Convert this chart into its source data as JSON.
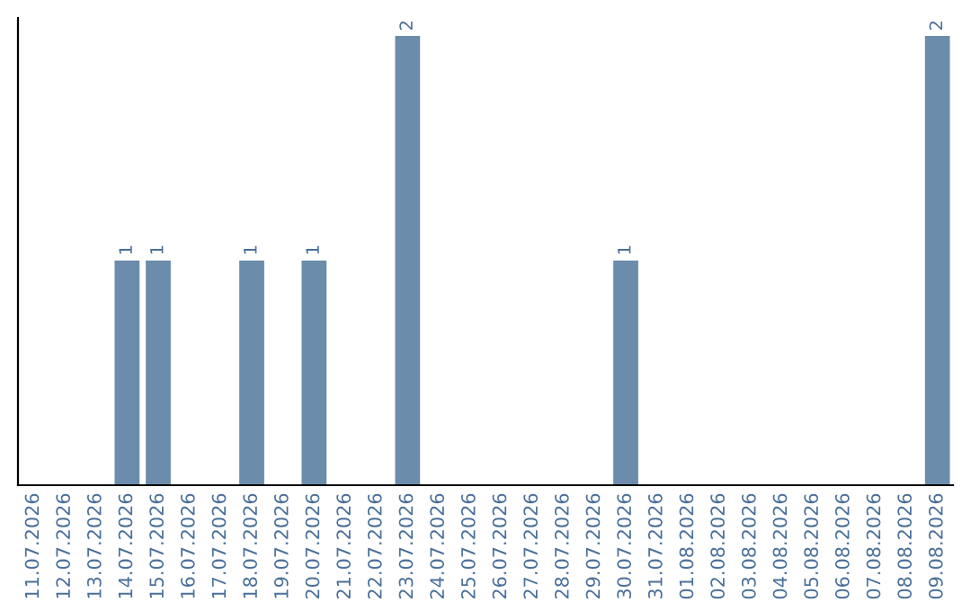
{
  "chart_data": {
    "type": "bar",
    "categories": [
      "11.07.2026",
      "12.07.2026",
      "13.07.2026",
      "14.07.2026",
      "15.07.2026",
      "16.07.2026",
      "17.07.2026",
      "18.07.2026",
      "19.07.2026",
      "20.07.2026",
      "21.07.2026",
      "22.07.2026",
      "23.07.2026",
      "24.07.2026",
      "25.07.2026",
      "26.07.2026",
      "27.07.2026",
      "28.07.2026",
      "29.07.2026",
      "30.07.2026",
      "31.07.2026",
      "01.08.2026",
      "02.08.2026",
      "03.08.2026",
      "04.08.2026",
      "05.08.2026",
      "06.08.2026",
      "07.08.2026",
      "08.08.2026",
      "09.08.2026"
    ],
    "values": [
      0,
      0,
      0,
      1,
      1,
      0,
      0,
      1,
      0,
      1,
      0,
      0,
      2,
      0,
      0,
      0,
      0,
      0,
      0,
      1,
      0,
      0,
      0,
      0,
      0,
      0,
      0,
      0,
      0,
      2
    ],
    "value_labels": [
      null,
      null,
      null,
      "1",
      "1",
      null,
      null,
      "1",
      null,
      "1",
      null,
      null,
      "2",
      null,
      null,
      null,
      null,
      null,
      null,
      "1",
      null,
      null,
      null,
      null,
      null,
      null,
      null,
      null,
      null,
      "2"
    ],
    "color": "#6b8caa",
    "tick_labels": "x",
    "grid": false,
    "legend": false
  }
}
